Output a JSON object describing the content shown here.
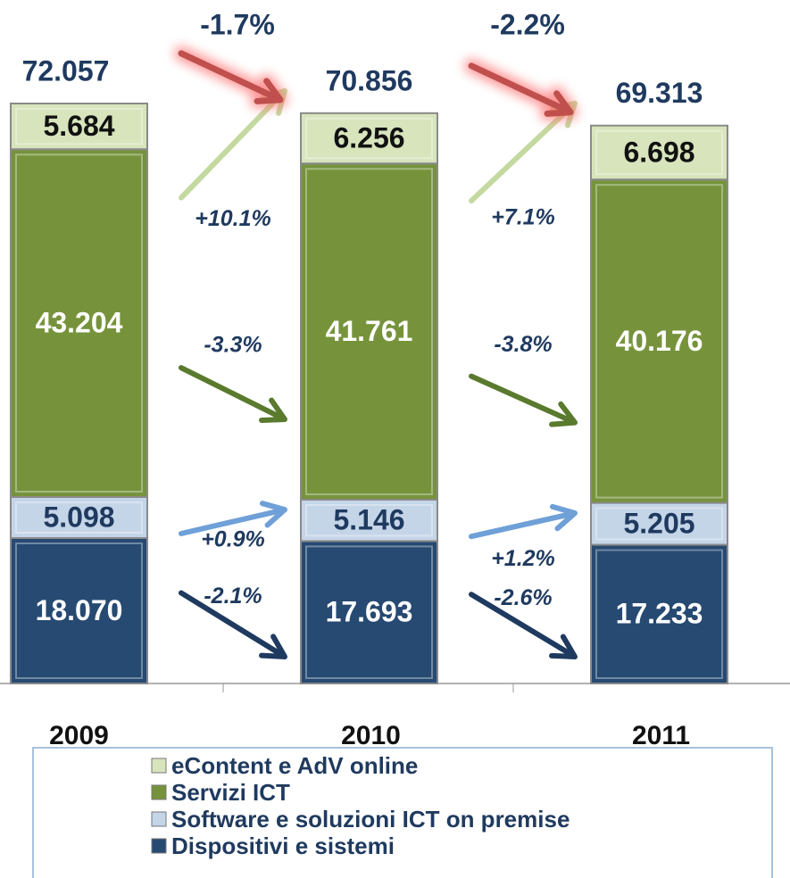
{
  "chart_data": {
    "type": "stacked-bar",
    "categories": [
      "2009",
      "2010",
      "2011"
    ],
    "totals": [
      72.057,
      70.856,
      69.313
    ],
    "series": [
      {
        "name": "Dispositivi e sistemi",
        "color": "#264a72",
        "values": [
          18.07,
          17.693,
          17.233
        ],
        "value_labels": [
          "18.070",
          "17.693",
          "17.233"
        ]
      },
      {
        "name": "Software e soluzioni ICT on premise",
        "color": "#c5d5e8",
        "values": [
          5.098,
          5.146,
          5.205
        ],
        "value_labels": [
          "5.098",
          "5.146",
          "5.205"
        ]
      },
      {
        "name": "Servizi ICT",
        "color": "#76933c",
        "values": [
          43.204,
          41.761,
          40.176
        ],
        "value_labels": [
          "43.204",
          "41.761",
          "40.176"
        ]
      },
      {
        "name": "eContent e AdV online",
        "color": "#d7e4bc",
        "values": [
          5.684,
          6.256,
          6.698
        ],
        "value_labels": [
          "5.684",
          "6.256",
          "6.698"
        ]
      }
    ],
    "changes": [
      {
        "total": "-1.7%",
        "series": [
          "-2.1%",
          "+0.9%",
          "-3.3%",
          "+10.1%"
        ]
      },
      {
        "total": "-2.2%",
        "series": [
          "-2.6%",
          "+1.2%",
          "-3.8%",
          "+7.1%"
        ]
      }
    ]
  }
}
